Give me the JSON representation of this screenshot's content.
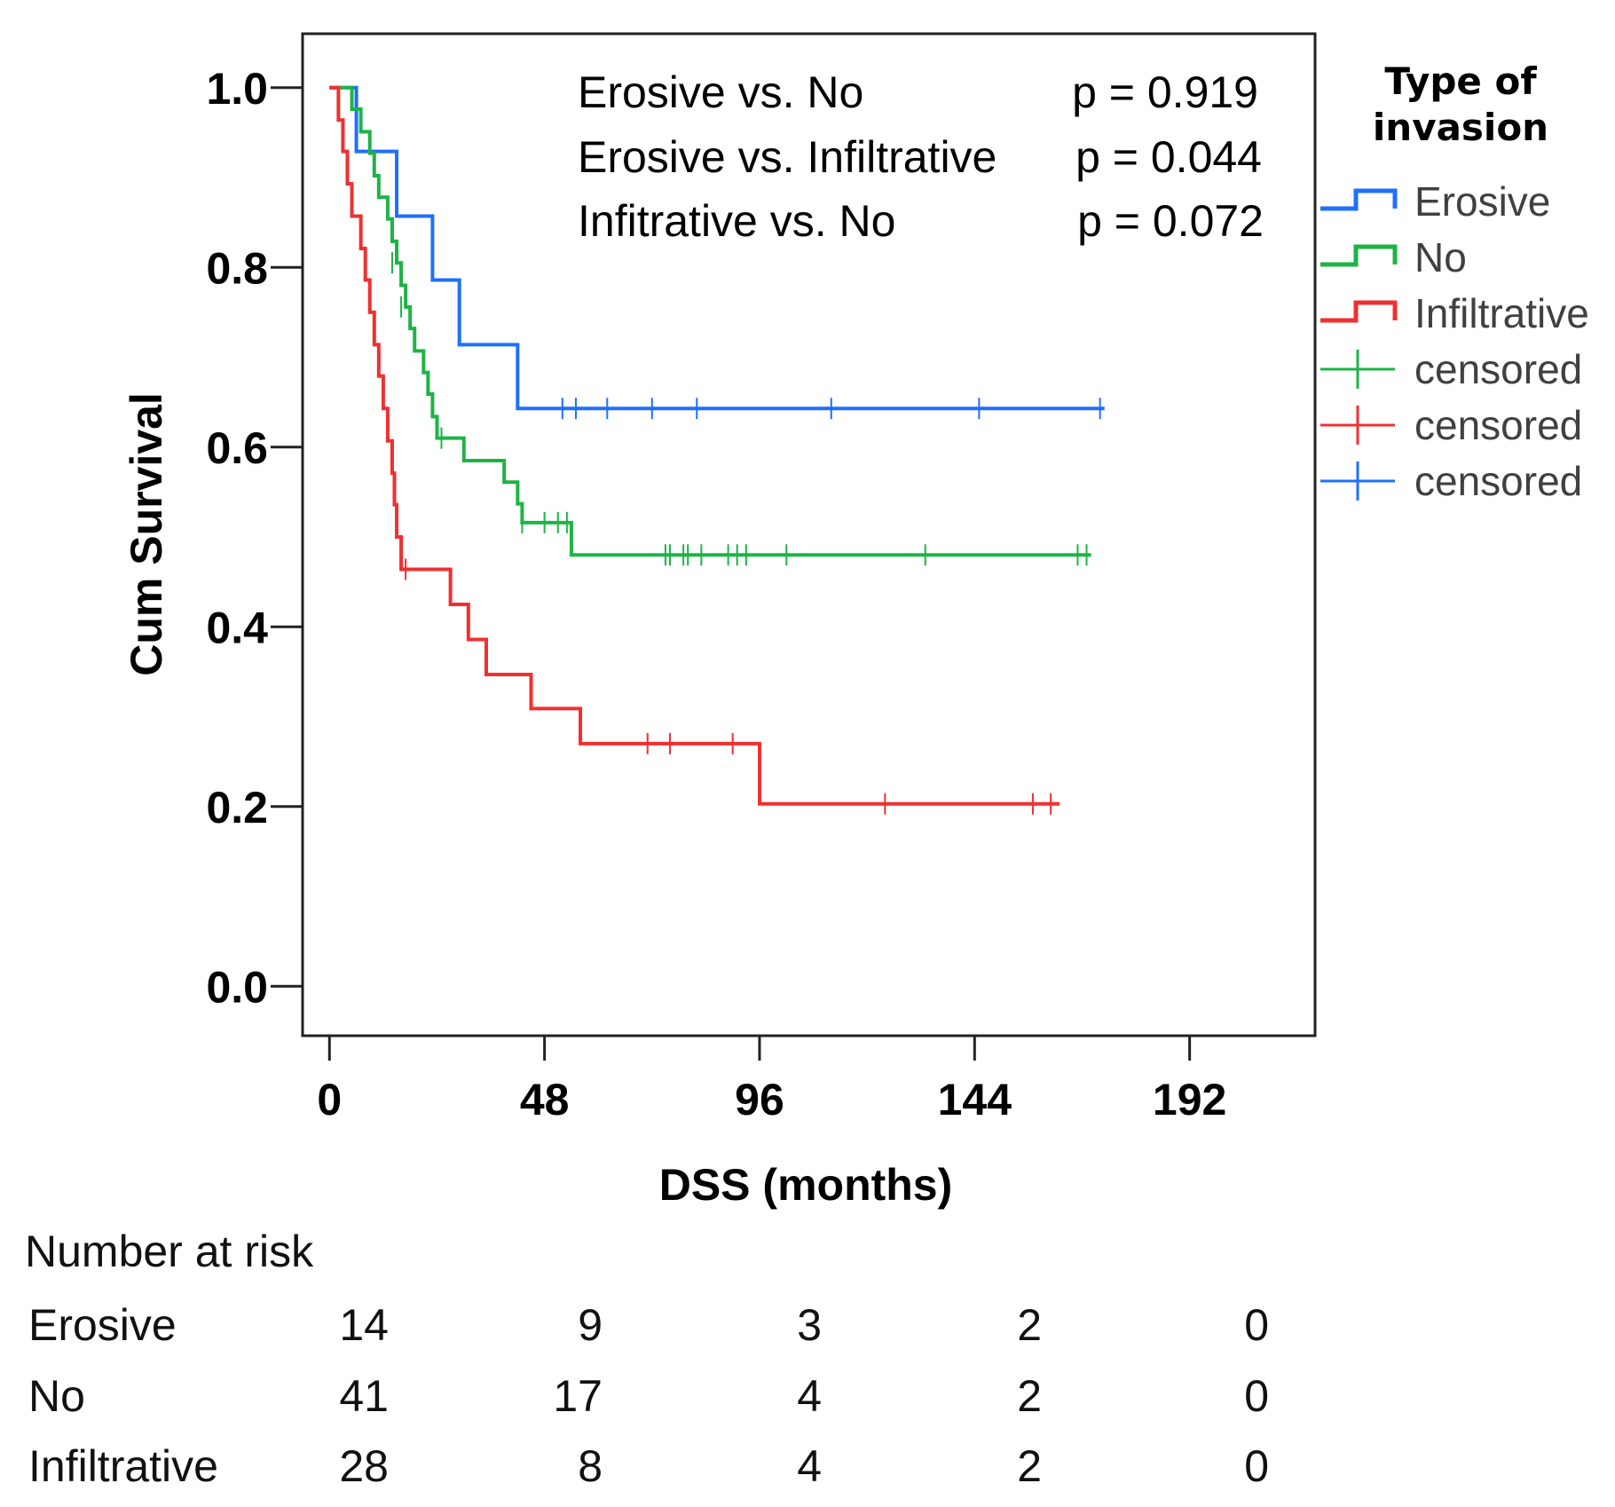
{
  "chart_data": {
    "type": "line",
    "subtype": "kaplan-meier",
    "xlabel": "DSS (months)",
    "ylabel": "Cum Survival",
    "xlim": [
      -6,
      220
    ],
    "ylim": [
      -0.055,
      1.06
    ],
    "xticks": [
      0,
      48,
      96,
      144,
      192
    ],
    "xtick_labels": [
      "0",
      "48",
      "96",
      "144",
      "192"
    ],
    "yticks": [
      0.0,
      0.2,
      0.4,
      0.6,
      0.8,
      1.0
    ],
    "ytick_labels": [
      "0.0",
      "0.2",
      "0.4",
      "0.6",
      "0.8",
      "1.0"
    ],
    "annotations": [
      {
        "comparison": "Erosive vs. No",
        "p": "p = 0.919"
      },
      {
        "comparison": "Erosive vs. Infiltrative",
        "p": "p = 0.044"
      },
      {
        "comparison": "Infitrative vs. No",
        "p": "p = 0.072"
      }
    ],
    "legend": {
      "title_line1": "Type of",
      "title_line2": "invasion",
      "position": "right",
      "entries": [
        {
          "label": "Erosive",
          "kind": "step",
          "color": "#1f6fff"
        },
        {
          "label": "No",
          "kind": "step",
          "color": "#1db446"
        },
        {
          "label": "Infiltrative",
          "kind": "step",
          "color": "#f03030"
        },
        {
          "label": "censored",
          "kind": "censor",
          "color": "#1db446"
        },
        {
          "label": "censored",
          "kind": "censor",
          "color": "#f03030"
        },
        {
          "label": "censored",
          "kind": "censor",
          "color": "#1f6fff"
        }
      ]
    },
    "series": [
      {
        "name": "Erosive",
        "color": "#1f6fff",
        "steps": [
          [
            0,
            1.0
          ],
          [
            6,
            0.929
          ],
          [
            15,
            0.857
          ],
          [
            23,
            0.786
          ],
          [
            29,
            0.714
          ],
          [
            42,
            0.643
          ]
        ],
        "end": 173,
        "censored": [
          [
            52,
            0.643
          ],
          [
            55,
            0.643
          ],
          [
            62,
            0.643
          ],
          [
            72,
            0.643
          ],
          [
            82,
            0.643
          ],
          [
            112,
            0.643
          ],
          [
            145,
            0.643
          ],
          [
            172,
            0.643
          ]
        ]
      },
      {
        "name": "No",
        "color": "#1db446",
        "steps": [
          [
            0,
            1.0
          ],
          [
            5,
            0.976
          ],
          [
            7,
            0.951
          ],
          [
            9,
            0.927
          ],
          [
            10,
            0.902
          ],
          [
            11,
            0.878
          ],
          [
            13,
            0.854
          ],
          [
            14,
            0.829
          ],
          [
            15,
            0.805
          ],
          [
            16,
            0.78
          ],
          [
            17,
            0.756
          ],
          [
            18,
            0.732
          ],
          [
            19,
            0.707
          ],
          [
            21,
            0.683
          ],
          [
            22,
            0.659
          ],
          [
            23,
            0.634
          ],
          [
            24,
            0.61
          ],
          [
            30,
            0.585
          ],
          [
            39,
            0.561
          ],
          [
            42,
            0.537
          ],
          [
            43,
            0.516
          ],
          [
            54,
            0.48
          ]
        ],
        "end": 170,
        "censored": [
          [
            14,
            0.805
          ],
          [
            16,
            0.756
          ],
          [
            25,
            0.61
          ],
          [
            43,
            0.516
          ],
          [
            48,
            0.516
          ],
          [
            51,
            0.516
          ],
          [
            53,
            0.516
          ],
          [
            75,
            0.48
          ],
          [
            76,
            0.48
          ],
          [
            79,
            0.48
          ],
          [
            80,
            0.48
          ],
          [
            83,
            0.48
          ],
          [
            89,
            0.48
          ],
          [
            91,
            0.48
          ],
          [
            93,
            0.48
          ],
          [
            102,
            0.48
          ],
          [
            133,
            0.48
          ],
          [
            167,
            0.48
          ],
          [
            169,
            0.48
          ]
        ]
      },
      {
        "name": "Infiltrative",
        "color": "#f03030",
        "steps": [
          [
            0,
            1.0
          ],
          [
            2,
            0.964
          ],
          [
            3,
            0.929
          ],
          [
            4,
            0.893
          ],
          [
            5,
            0.857
          ],
          [
            7,
            0.821
          ],
          [
            8,
            0.786
          ],
          [
            9,
            0.75
          ],
          [
            10,
            0.714
          ],
          [
            11,
            0.679
          ],
          [
            12,
            0.643
          ],
          [
            13,
            0.607
          ],
          [
            14,
            0.571
          ],
          [
            14.5,
            0.536
          ],
          [
            15,
            0.5
          ],
          [
            16,
            0.464
          ],
          [
            27,
            0.425
          ],
          [
            31,
            0.386
          ],
          [
            35,
            0.347
          ],
          [
            45,
            0.309
          ],
          [
            56,
            0.27
          ],
          [
            96,
            0.203
          ]
        ],
        "end": 163,
        "censored": [
          [
            17,
            0.464
          ],
          [
            71,
            0.27
          ],
          [
            76,
            0.27
          ],
          [
            90,
            0.27
          ],
          [
            124,
            0.203
          ],
          [
            157,
            0.203
          ],
          [
            161,
            0.203
          ]
        ]
      }
    ],
    "number_at_risk": {
      "title": "Number at risk",
      "rows": [
        {
          "group": "Erosive",
          "values": [
            "14",
            "9",
            "3",
            "2",
            "0"
          ]
        },
        {
          "group": "No",
          "values": [
            "41",
            "17",
            "4",
            "2",
            "0"
          ]
        },
        {
          "group": "Infiltrative",
          "values": [
            "28",
            "8",
            "4",
            "2",
            "0"
          ]
        }
      ]
    }
  }
}
